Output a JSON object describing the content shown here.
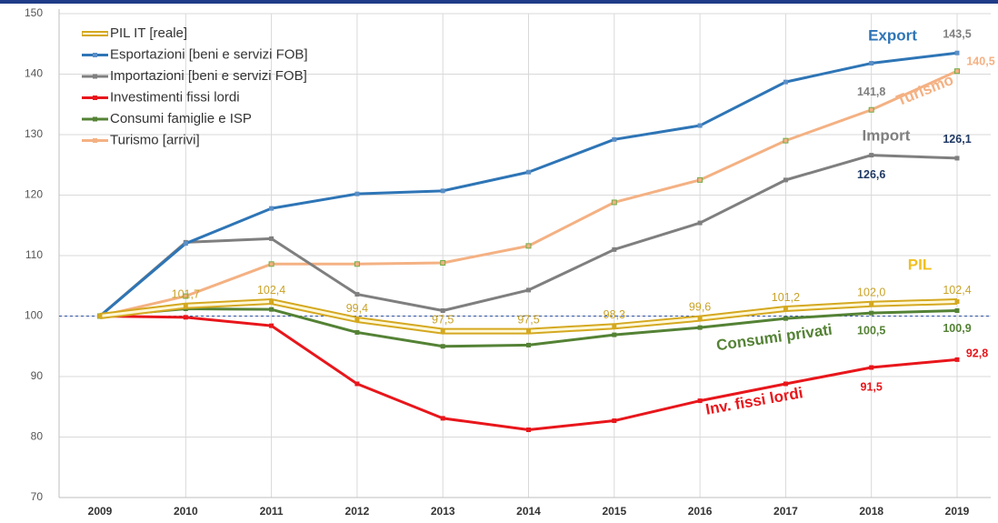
{
  "chart_data": {
    "type": "line",
    "categories": [
      "2009",
      "2010",
      "2011",
      "2012",
      "2013",
      "2014",
      "2015",
      "2016",
      "2017",
      "2018",
      "2019"
    ],
    "ylim": [
      70,
      150
    ],
    "yticks": [
      70,
      80,
      90,
      100,
      110,
      120,
      130,
      140,
      150
    ],
    "grid": true,
    "legend": "upper left",
    "reference_line": 100,
    "series": [
      {
        "name": "PIL IT [reale]",
        "color": "#d4a820",
        "label_color": "#c9a227",
        "values": [
          100,
          101.7,
          102.4,
          99.4,
          97.5,
          97.5,
          98.3,
          99.6,
          101.2,
          102.0,
          102.4
        ],
        "value_labels": [
          null,
          "101,7",
          "102,4",
          "99,4",
          "97,5",
          "97,5",
          "98,3",
          "99,6",
          "101,2",
          "102,0",
          "102,4"
        ]
      },
      {
        "name": "Esportazioni [beni e servizi FOB]",
        "color": "#2e75b6",
        "label_color": "#7f7f7f",
        "values": [
          100,
          112,
          117.8,
          120.2,
          120.7,
          123.8,
          129.2,
          131.5,
          138.7,
          141.8,
          143.5
        ],
        "value_labels": [
          null,
          null,
          null,
          null,
          null,
          null,
          null,
          null,
          null,
          "141,8",
          "143,5"
        ]
      },
      {
        "name": "Importazioni [beni e servizi FOB]",
        "color": "#7f7f7f",
        "label_color": "#1f3864",
        "values": [
          100,
          112.2,
          112.8,
          103.6,
          100.9,
          104.3,
          111,
          115.4,
          122.5,
          126.6,
          126.1
        ],
        "value_labels": [
          null,
          null,
          null,
          null,
          null,
          null,
          null,
          null,
          null,
          "126,6",
          "126,1"
        ]
      },
      {
        "name": "Investimenti fissi lordi",
        "color": "#e8161b",
        "label_color": "#e8161b",
        "values": [
          100,
          99.8,
          98.4,
          88.8,
          83.1,
          81.2,
          82.7,
          86,
          88.8,
          91.5,
          92.8
        ],
        "value_labels": [
          null,
          null,
          null,
          null,
          null,
          null,
          null,
          null,
          null,
          "91,5",
          "92,8"
        ]
      },
      {
        "name": "Consumi famiglie e ISP",
        "color": "#548235",
        "label_color": "#548235",
        "values": [
          100,
          101.2,
          101.1,
          97.3,
          95,
          95.2,
          96.9,
          98.1,
          99.6,
          100.5,
          100.9
        ],
        "value_labels": [
          null,
          null,
          null,
          null,
          null,
          null,
          null,
          null,
          null,
          "100,5",
          "100,9"
        ]
      },
      {
        "name": "Turismo [arrivi]",
        "color": "#f4b183",
        "label_color": "#f4b183",
        "values": [
          100,
          103.3,
          108.6,
          108.6,
          108.8,
          111.6,
          118.8,
          122.5,
          129,
          134.1,
          140.5
        ],
        "value_labels": [
          null,
          null,
          null,
          null,
          null,
          null,
          null,
          null,
          null,
          null,
          "140,5"
        ]
      }
    ],
    "annotations": [
      {
        "text": "Export",
        "color": "#2e75b6"
      },
      {
        "text": "Turismo",
        "color": "#f4b183"
      },
      {
        "text": "Import",
        "color": "#7f7f7f"
      },
      {
        "text": "PIL",
        "color": "#f0c020"
      },
      {
        "text": "Consumi privati",
        "color": "#548235"
      },
      {
        "text": "Inv. fissi lordi",
        "color": "#e8161b"
      }
    ]
  }
}
